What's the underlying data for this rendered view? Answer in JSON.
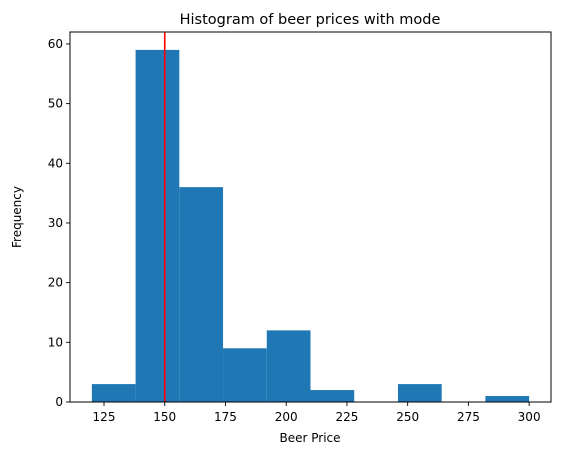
{
  "chart_data": {
    "type": "bar",
    "title": "Histogram of beer prices with mode",
    "xlabel": "Beer Price",
    "ylabel": "Frequency",
    "bin_edges": [
      120,
      138,
      156,
      174,
      192,
      210,
      228,
      246,
      264,
      282,
      300
    ],
    "values": [
      3,
      59,
      36,
      9,
      12,
      2,
      0,
      3,
      0,
      1
    ],
    "mode": 150,
    "xlim": [
      111,
      309
    ],
    "ylim": [
      0,
      62
    ],
    "xticks": [
      125,
      150,
      175,
      200,
      225,
      250,
      275,
      300
    ],
    "yticks": [
      0,
      10,
      20,
      30,
      40,
      50,
      60
    ],
    "grid": false,
    "bar_color": "#1f77b4",
    "mode_line_color": "#ff0000"
  }
}
